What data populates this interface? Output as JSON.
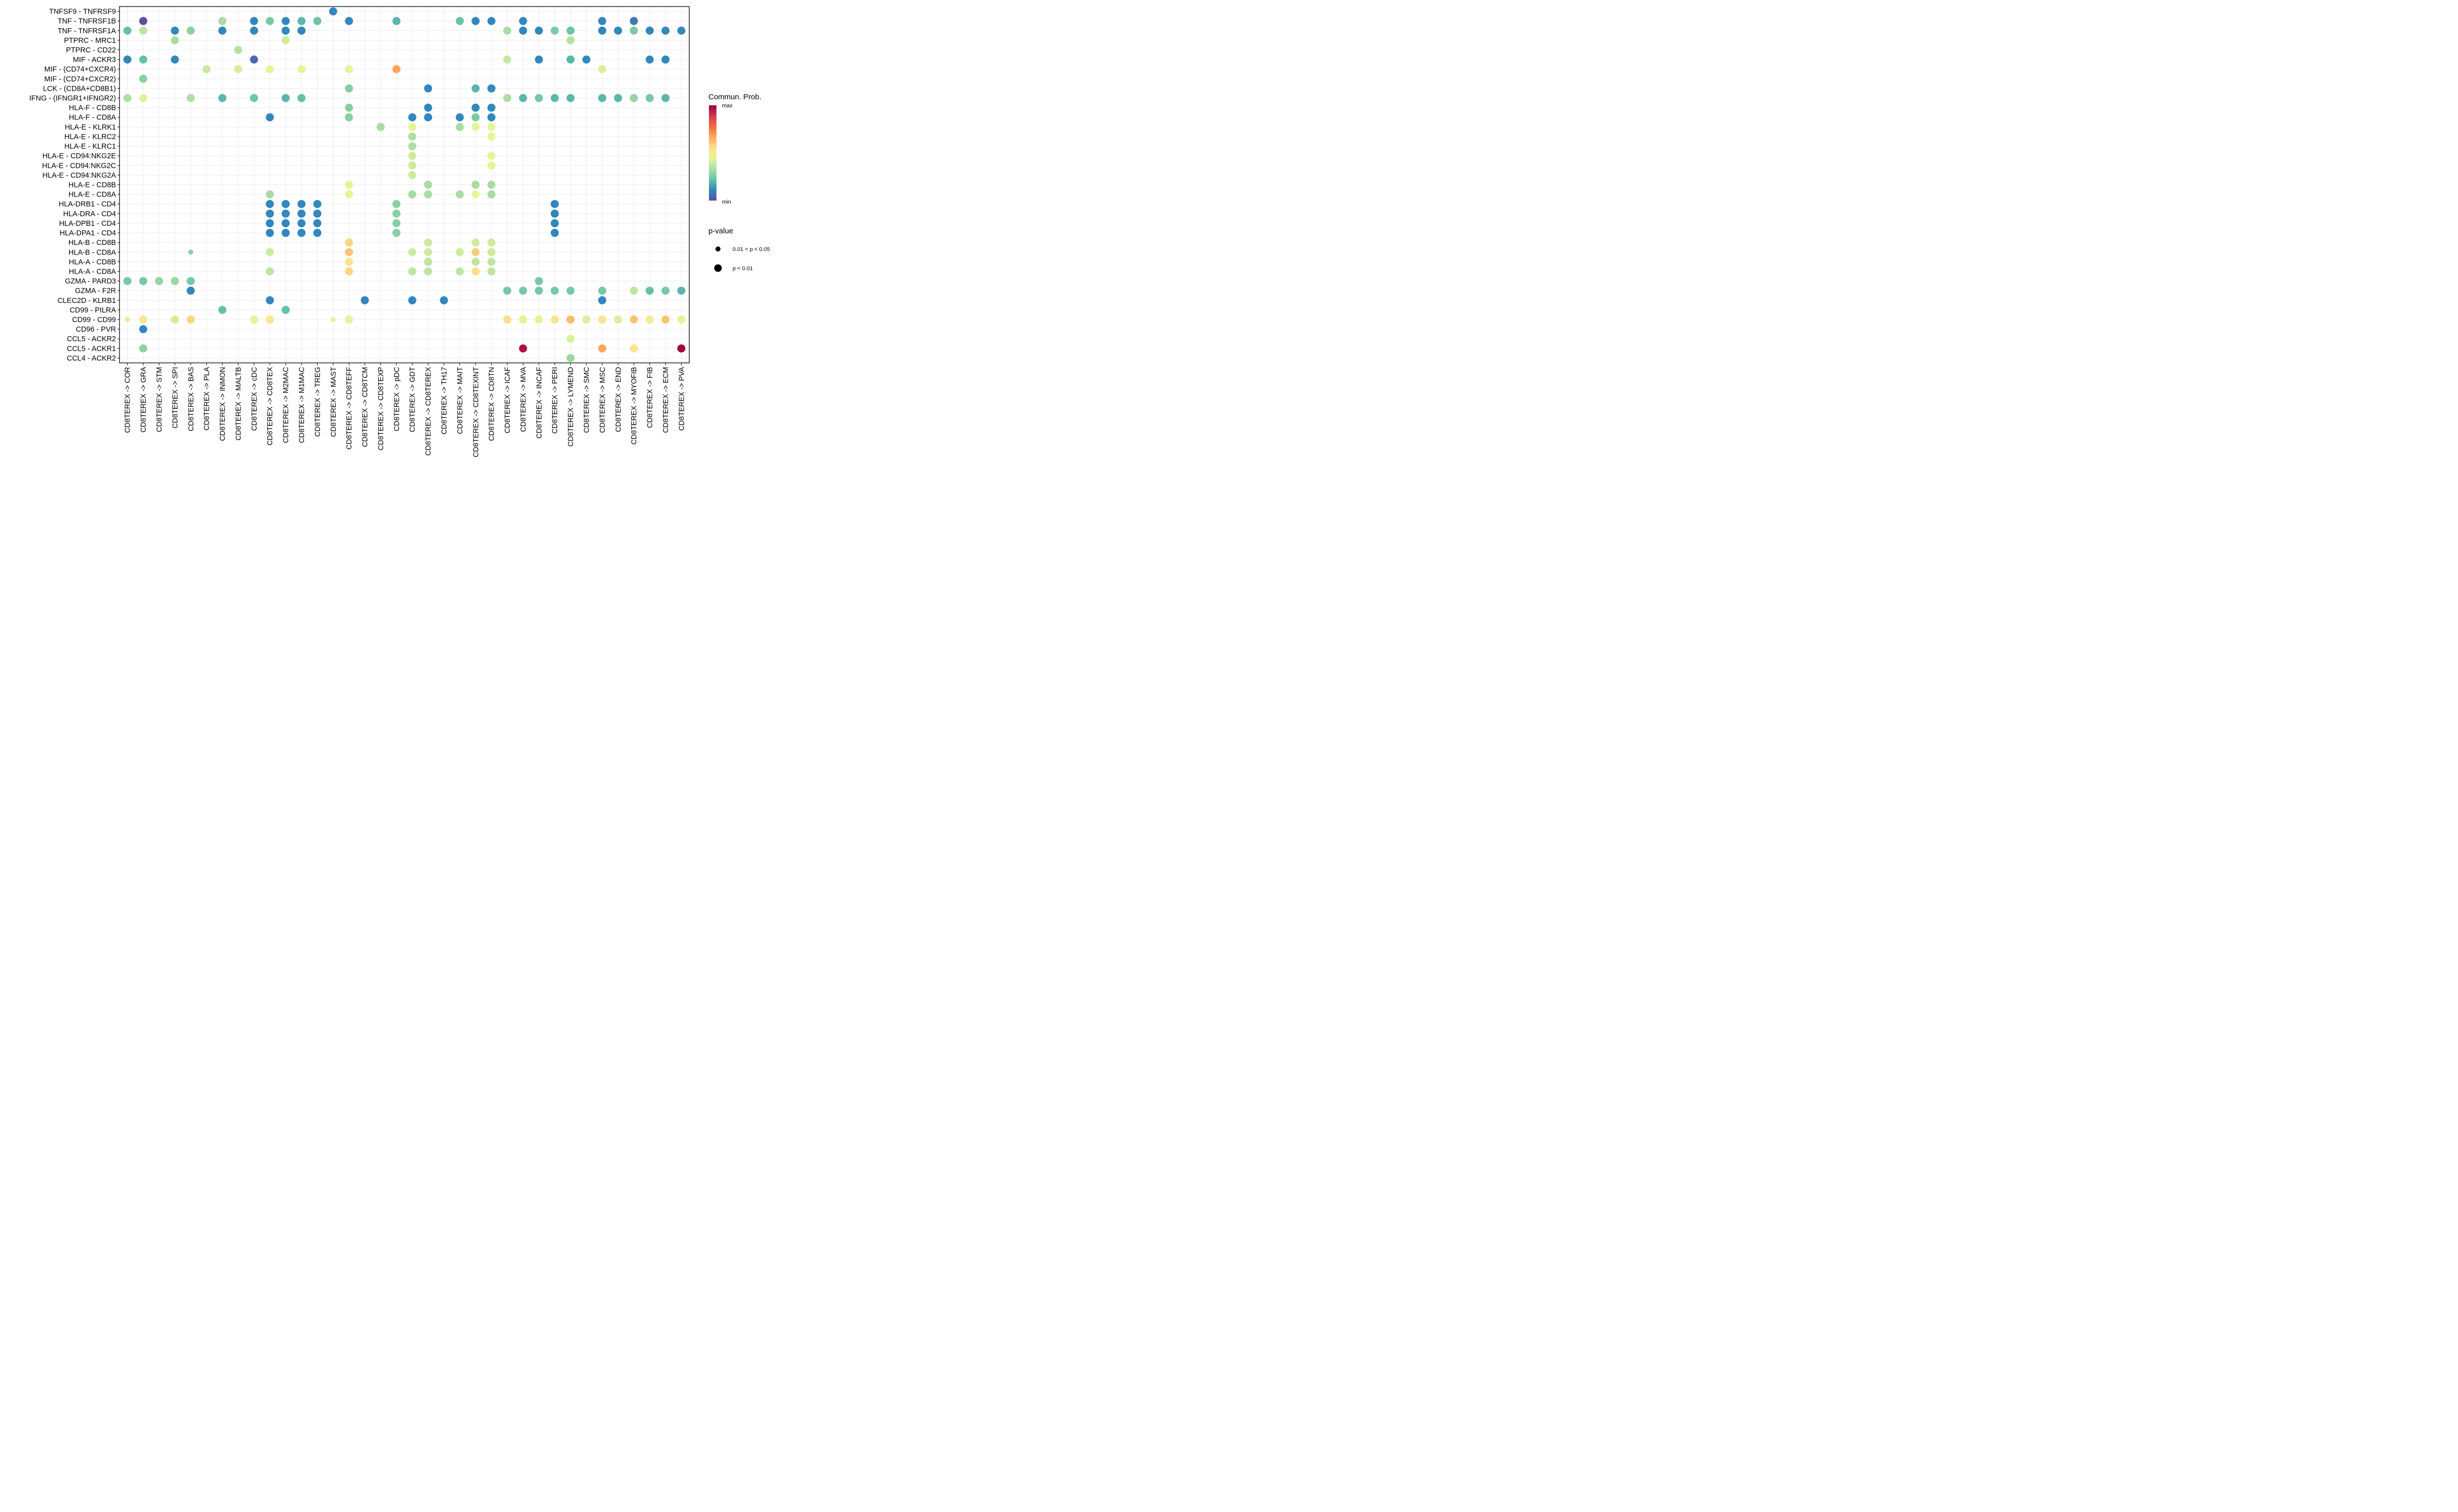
{
  "chart_data": {
    "type": "scatter",
    "subtype": "bubble-dotplot",
    "title": "",
    "xlabel": "",
    "ylabel": "",
    "grid": true,
    "legend_placement": "right",
    "x_categories": [
      "CD8TEREX -> COR",
      "CD8TEREX -> GRA",
      "CD8TEREX -> STM",
      "CD8TEREX -> SPI",
      "CD8TEREX -> BAS",
      "CD8TEREX -> PLA",
      "CD8TEREX -> INMON",
      "CD8TEREX -> MALTB",
      "CD8TEREX -> cDC",
      "CD8TEREX -> CD8TEX",
      "CD8TEREX -> M2MAC",
      "CD8TEREX -> M1MAC",
      "CD8TEREX -> TREG",
      "CD8TEREX -> MAST",
      "CD8TEREX -> CD8TEFF",
      "CD8TEREX -> CD8TCM",
      "CD8TEREX -> CD8TEXP",
      "CD8TEREX -> pDC",
      "CD8TEREX -> GDT",
      "CD8TEREX -> CD8TEREX",
      "CD8TEREX -> TH17",
      "CD8TEREX -> MAIT",
      "CD8TEREX -> CD8TEXINT",
      "CD8TEREX -> CD8TN",
      "CD8TEREX -> ICAF",
      "CD8TEREX -> MVA",
      "CD8TEREX -> INCAF",
      "CD8TEREX -> PERI",
      "CD8TEREX -> LYMEND",
      "CD8TEREX -> SMC",
      "CD8TEREX -> MSC",
      "CD8TEREX -> END",
      "CD8TEREX -> MYOFIB",
      "CD8TEREX -> FIB",
      "CD8TEREX -> ECM",
      "CD8TEREX -> PVA"
    ],
    "y_categories": [
      "TNFSF9 - TNFRSF9",
      "TNF - TNFRSF1B",
      "TNF - TNFRSF1A",
      "PTPRC - MRC1",
      "PTPRC - CD22",
      "MIF - ACKR3",
      "MIF - (CD74+CXCR4)",
      "MIF - (CD74+CXCR2)",
      "LCK - (CD8A+CD8B1)",
      "IFNG - (IFNGR1+IFNGR2)",
      "HLA-F - CD8B",
      "HLA-F - CD8A",
      "HLA-E - KLRK1",
      "HLA-E - KLRC2",
      "HLA-E - KLRC1",
      "HLA-E - CD94:NKG2E",
      "HLA-E - CD94:NKG2C",
      "HLA-E - CD94:NKG2A",
      "HLA-E - CD8B",
      "HLA-E - CD8A",
      "HLA-DRB1 - CD4",
      "HLA-DRA - CD4",
      "HLA-DPB1 - CD4",
      "HLA-DPA1 - CD4",
      "HLA-B - CD8B",
      "HLA-B - CD8A",
      "HLA-A - CD8B",
      "HLA-A - CD8A",
      "GZMA - PARD3",
      "GZMA - F2R",
      "CLEC2D - KLRB1",
      "CD99 - PILRA",
      "CD99 - CD99",
      "CD96 - PVR",
      "CCL5 - ACKR2",
      "CCL5 - ACKR1",
      "CCL4 - ACKR2"
    ],
    "color_scale": {
      "title": "Commun. Prob.",
      "min_label": "min",
      "max_label": "max",
      "palette": [
        "#5E4FA2",
        "#3288BD",
        "#66C2A5",
        "#ABDDA4",
        "#E6F598",
        "#FEE08B",
        "#FDAE61",
        "#F46D43",
        "#D53E4F",
        "#9E0142"
      ]
    },
    "size_legend": {
      "title": "p-value",
      "entries": [
        {
          "label": "0.01 < p < 0.05",
          "size": "small"
        },
        {
          "label": "p < 0.01",
          "size": "large"
        }
      ]
    },
    "points_format": "[y_index, x_index, relative_prob_0_to_1, p_small(1 means 0.01<p<0.05)]",
    "points": [
      [
        0,
        13,
        0.11,
        0
      ],
      [
        1,
        1,
        0.0,
        0
      ],
      [
        1,
        6,
        0.33,
        0
      ],
      [
        1,
        8,
        0.11,
        0
      ],
      [
        1,
        9,
        0.25,
        0
      ],
      [
        1,
        10,
        0.11,
        0
      ],
      [
        1,
        11,
        0.2,
        0
      ],
      [
        1,
        12,
        0.23,
        0
      ],
      [
        1,
        14,
        0.11,
        0
      ],
      [
        1,
        17,
        0.2,
        0
      ],
      [
        1,
        21,
        0.23,
        0
      ],
      [
        1,
        22,
        0.11,
        0
      ],
      [
        1,
        23,
        0.11,
        0
      ],
      [
        1,
        25,
        0.11,
        0
      ],
      [
        1,
        30,
        0.11,
        0
      ],
      [
        1,
        32,
        0.08,
        0
      ],
      [
        2,
        0,
        0.22,
        0
      ],
      [
        2,
        1,
        0.37,
        0
      ],
      [
        2,
        3,
        0.11,
        0
      ],
      [
        2,
        4,
        0.28,
        0
      ],
      [
        2,
        6,
        0.11,
        0
      ],
      [
        2,
        8,
        0.11,
        0
      ],
      [
        2,
        10,
        0.11,
        0
      ],
      [
        2,
        11,
        0.11,
        0
      ],
      [
        2,
        24,
        0.33,
        0
      ],
      [
        2,
        25,
        0.11,
        0
      ],
      [
        2,
        26,
        0.11,
        0
      ],
      [
        2,
        27,
        0.26,
        0
      ],
      [
        2,
        28,
        0.23,
        0
      ],
      [
        2,
        30,
        0.11,
        0
      ],
      [
        2,
        31,
        0.11,
        0
      ],
      [
        2,
        32,
        0.26,
        0
      ],
      [
        2,
        33,
        0.11,
        0
      ],
      [
        2,
        34,
        0.11,
        0
      ],
      [
        2,
        35,
        0.11,
        0
      ],
      [
        3,
        3,
        0.33,
        0
      ],
      [
        3,
        10,
        0.4,
        0
      ],
      [
        3,
        28,
        0.35,
        0
      ],
      [
        4,
        7,
        0.35,
        0
      ],
      [
        5,
        0,
        0.11,
        0
      ],
      [
        5,
        1,
        0.22,
        0
      ],
      [
        5,
        3,
        0.11,
        0
      ],
      [
        5,
        8,
        0.05,
        0
      ],
      [
        5,
        24,
        0.38,
        0
      ],
      [
        5,
        26,
        0.11,
        0
      ],
      [
        5,
        28,
        0.2,
        0
      ],
      [
        5,
        29,
        0.11,
        0
      ],
      [
        5,
        33,
        0.11,
        0
      ],
      [
        5,
        34,
        0.11,
        0
      ],
      [
        6,
        5,
        0.39,
        0
      ],
      [
        6,
        7,
        0.41,
        0
      ],
      [
        6,
        9,
        0.45,
        0
      ],
      [
        6,
        11,
        0.47,
        0
      ],
      [
        6,
        14,
        0.44,
        0
      ],
      [
        6,
        17,
        0.68,
        0
      ],
      [
        6,
        30,
        0.42,
        0
      ],
      [
        7,
        1,
        0.28,
        0
      ],
      [
        8,
        14,
        0.27,
        0
      ],
      [
        8,
        19,
        0.11,
        0
      ],
      [
        8,
        22,
        0.2,
        0
      ],
      [
        8,
        23,
        0.11,
        0
      ],
      [
        9,
        0,
        0.34,
        0
      ],
      [
        9,
        1,
        0.43,
        0
      ],
      [
        9,
        4,
        0.34,
        0
      ],
      [
        9,
        6,
        0.2,
        0
      ],
      [
        9,
        8,
        0.24,
        0
      ],
      [
        9,
        10,
        0.2,
        0
      ],
      [
        9,
        11,
        0.22,
        0
      ],
      [
        9,
        24,
        0.34,
        0
      ],
      [
        9,
        25,
        0.2,
        0
      ],
      [
        9,
        26,
        0.25,
        0
      ],
      [
        9,
        27,
        0.2,
        0
      ],
      [
        9,
        28,
        0.2,
        0
      ],
      [
        9,
        30,
        0.2,
        0
      ],
      [
        9,
        31,
        0.2,
        0
      ],
      [
        9,
        32,
        0.3,
        0
      ],
      [
        9,
        33,
        0.25,
        0
      ],
      [
        9,
        34,
        0.2,
        0
      ],
      [
        10,
        14,
        0.27,
        0
      ],
      [
        10,
        19,
        0.11,
        0
      ],
      [
        10,
        22,
        0.11,
        0
      ],
      [
        10,
        23,
        0.11,
        0
      ],
      [
        11,
        9,
        0.11,
        0
      ],
      [
        11,
        14,
        0.28,
        0
      ],
      [
        11,
        18,
        0.11,
        0
      ],
      [
        11,
        19,
        0.11,
        0
      ],
      [
        11,
        21,
        0.11,
        0
      ],
      [
        11,
        22,
        0.26,
        0
      ],
      [
        11,
        23,
        0.11,
        0
      ],
      [
        12,
        16,
        0.33,
        0
      ],
      [
        12,
        18,
        0.45,
        0
      ],
      [
        12,
        21,
        0.33,
        0
      ],
      [
        12,
        22,
        0.45,
        0
      ],
      [
        12,
        23,
        0.45,
        0
      ],
      [
        13,
        18,
        0.34,
        0
      ],
      [
        13,
        23,
        0.45,
        0
      ],
      [
        14,
        18,
        0.34,
        0
      ],
      [
        15,
        18,
        0.4,
        0
      ],
      [
        15,
        23,
        0.44,
        0
      ],
      [
        16,
        18,
        0.4,
        0
      ],
      [
        16,
        23,
        0.44,
        0
      ],
      [
        17,
        18,
        0.4,
        0
      ],
      [
        18,
        14,
        0.46,
        0
      ],
      [
        18,
        19,
        0.33,
        0
      ],
      [
        18,
        22,
        0.33,
        0
      ],
      [
        18,
        23,
        0.33,
        0
      ],
      [
        19,
        9,
        0.33,
        0
      ],
      [
        19,
        14,
        0.47,
        0
      ],
      [
        19,
        18,
        0.33,
        0
      ],
      [
        19,
        19,
        0.33,
        0
      ],
      [
        19,
        21,
        0.33,
        0
      ],
      [
        19,
        22,
        0.45,
        0
      ],
      [
        19,
        23,
        0.33,
        0
      ],
      [
        20,
        9,
        0.11,
        0
      ],
      [
        20,
        10,
        0.11,
        0
      ],
      [
        20,
        11,
        0.11,
        0
      ],
      [
        20,
        12,
        0.11,
        0
      ],
      [
        20,
        17,
        0.28,
        0
      ],
      [
        20,
        27,
        0.11,
        0
      ],
      [
        21,
        9,
        0.11,
        0
      ],
      [
        21,
        10,
        0.11,
        0
      ],
      [
        21,
        11,
        0.11,
        0
      ],
      [
        21,
        12,
        0.11,
        0
      ],
      [
        21,
        17,
        0.28,
        0
      ],
      [
        21,
        27,
        0.11,
        0
      ],
      [
        22,
        9,
        0.11,
        0
      ],
      [
        22,
        10,
        0.11,
        0
      ],
      [
        22,
        11,
        0.11,
        0
      ],
      [
        22,
        12,
        0.11,
        0
      ],
      [
        22,
        17,
        0.28,
        0
      ],
      [
        22,
        27,
        0.11,
        0
      ],
      [
        23,
        9,
        0.11,
        0
      ],
      [
        23,
        10,
        0.11,
        0
      ],
      [
        23,
        11,
        0.11,
        0
      ],
      [
        23,
        12,
        0.11,
        0
      ],
      [
        23,
        17,
        0.28,
        0
      ],
      [
        23,
        27,
        0.11,
        0
      ],
      [
        24,
        14,
        0.58,
        0
      ],
      [
        24,
        19,
        0.4,
        0
      ],
      [
        24,
        22,
        0.4,
        0
      ],
      [
        24,
        23,
        0.4,
        0
      ],
      [
        25,
        4,
        0.28,
        1
      ],
      [
        25,
        9,
        0.4,
        0
      ],
      [
        25,
        14,
        0.62,
        0
      ],
      [
        25,
        18,
        0.4,
        0
      ],
      [
        25,
        19,
        0.4,
        0
      ],
      [
        25,
        21,
        0.4,
        0
      ],
      [
        25,
        22,
        0.6,
        0
      ],
      [
        25,
        23,
        0.4,
        0
      ],
      [
        26,
        14,
        0.55,
        0
      ],
      [
        26,
        19,
        0.37,
        0
      ],
      [
        26,
        22,
        0.37,
        0
      ],
      [
        26,
        23,
        0.37,
        0
      ],
      [
        27,
        9,
        0.37,
        0
      ],
      [
        27,
        14,
        0.58,
        0
      ],
      [
        27,
        18,
        0.37,
        0
      ],
      [
        27,
        19,
        0.37,
        0
      ],
      [
        27,
        21,
        0.37,
        0
      ],
      [
        27,
        22,
        0.56,
        0
      ],
      [
        27,
        23,
        0.37,
        0
      ],
      [
        28,
        0,
        0.25,
        0
      ],
      [
        28,
        1,
        0.25,
        0
      ],
      [
        28,
        2,
        0.3,
        0
      ],
      [
        28,
        3,
        0.31,
        0
      ],
      [
        28,
        4,
        0.25,
        0
      ],
      [
        28,
        26,
        0.25,
        0
      ],
      [
        29,
        4,
        0.11,
        0
      ],
      [
        29,
        24,
        0.25,
        0
      ],
      [
        29,
        25,
        0.25,
        0
      ],
      [
        29,
        26,
        0.25,
        0
      ],
      [
        29,
        27,
        0.25,
        0
      ],
      [
        29,
        28,
        0.25,
        0
      ],
      [
        29,
        30,
        0.25,
        0
      ],
      [
        29,
        32,
        0.37,
        0
      ],
      [
        29,
        33,
        0.22,
        0
      ],
      [
        29,
        34,
        0.25,
        0
      ],
      [
        29,
        35,
        0.2,
        0
      ],
      [
        30,
        9,
        0.11,
        0
      ],
      [
        30,
        15,
        0.11,
        0
      ],
      [
        30,
        18,
        0.11,
        0
      ],
      [
        30,
        20,
        0.11,
        0
      ],
      [
        30,
        30,
        0.11,
        0
      ],
      [
        31,
        6,
        0.22,
        0
      ],
      [
        31,
        10,
        0.22,
        0
      ],
      [
        32,
        0,
        0.42,
        1
      ],
      [
        32,
        1,
        0.52,
        0
      ],
      [
        32,
        3,
        0.41,
        0
      ],
      [
        32,
        4,
        0.58,
        0
      ],
      [
        32,
        8,
        0.46,
        0
      ],
      [
        32,
        9,
        0.52,
        0
      ],
      [
        32,
        13,
        0.43,
        1
      ],
      [
        32,
        14,
        0.44,
        0
      ],
      [
        32,
        24,
        0.56,
        0
      ],
      [
        32,
        25,
        0.48,
        0
      ],
      [
        32,
        26,
        0.48,
        0
      ],
      [
        32,
        27,
        0.53,
        0
      ],
      [
        32,
        28,
        0.64,
        0
      ],
      [
        32,
        29,
        0.42,
        0
      ],
      [
        32,
        30,
        0.53,
        0
      ],
      [
        32,
        31,
        0.42,
        0
      ],
      [
        32,
        32,
        0.62,
        0
      ],
      [
        32,
        33,
        0.5,
        0
      ],
      [
        32,
        34,
        0.62,
        0
      ],
      [
        32,
        35,
        0.47,
        0
      ],
      [
        33,
        1,
        0.11,
        0
      ],
      [
        34,
        28,
        0.42,
        0
      ],
      [
        35,
        1,
        0.29,
        0
      ],
      [
        35,
        25,
        0.97,
        0
      ],
      [
        35,
        30,
        0.68,
        0
      ],
      [
        35,
        32,
        0.53,
        0
      ],
      [
        35,
        35,
        1.0,
        0
      ],
      [
        36,
        28,
        0.31,
        0
      ]
    ]
  }
}
